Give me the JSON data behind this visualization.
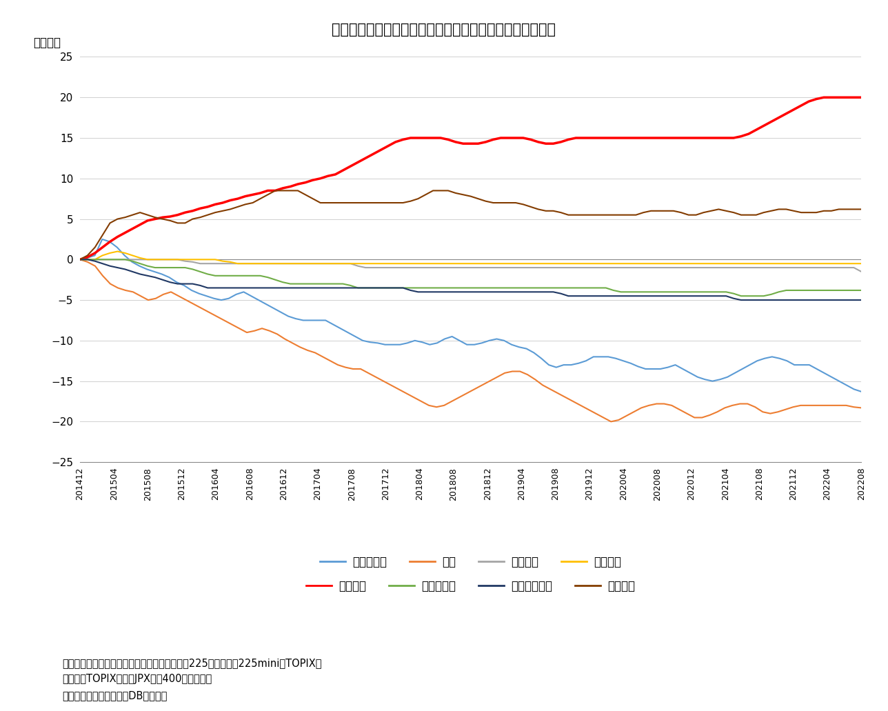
{
  "title": "図表４　事業法人の自社株買いが需給面で存在感を高める",
  "ylabel": "〈兆円〉",
  "ylim": [
    -25,
    25
  ],
  "yticks": [
    -25,
    -20,
    -15,
    -10,
    -5,
    0,
    5,
    10,
    15,
    20,
    25
  ],
  "background_color": "#ffffff",
  "note_line1": "（注）現物は東証・名証の二市場、先物は日経225先物、日経225mini、TOPIX先",
  "note_line2": "物、ミニTOPIX先物、JPX日経400先物の合計",
  "note_line3": "（資料）ニッセイ基礎研DBから作成",
  "x_labels": [
    "201412",
    "201504",
    "201508",
    "201512",
    "201604",
    "201608",
    "201612",
    "201704",
    "201708",
    "201712",
    "201804",
    "201808",
    "201812",
    "201904",
    "201908",
    "201912",
    "202004",
    "202008",
    "202012",
    "202104",
    "202108",
    "202112",
    "202204",
    "202208"
  ],
  "series": {
    "海外投資家": {
      "color": "#5B9BD5",
      "linewidth": 1.5,
      "data": [
        0.0,
        0.2,
        0.5,
        2.5,
        2.2,
        1.5,
        0.5,
        -0.3,
        -0.8,
        -1.2,
        -1.5,
        -1.8,
        -2.2,
        -2.8,
        -3.2,
        -3.8,
        -4.2,
        -4.5,
        -4.8,
        -5.0,
        -4.8,
        -4.3,
        -4.0,
        -4.5,
        -5.0,
        -5.5,
        -6.0,
        -6.5,
        -7.0,
        -7.3,
        -7.5,
        -7.5,
        -7.5,
        -7.5,
        -8.0,
        -8.5,
        -9.0,
        -9.5,
        -10.0,
        -10.2,
        -10.3,
        -10.5,
        -10.5,
        -10.5,
        -10.3,
        -10.0,
        -10.2,
        -10.5,
        -10.3,
        -9.8,
        -9.5,
        -10.0,
        -10.5,
        -10.5,
        -10.3,
        -10.0,
        -9.8,
        -10.0,
        -10.5,
        -10.8,
        -11.0,
        -11.5,
        -12.2,
        -13.0,
        -13.3,
        -13.0,
        -13.0,
        -12.8,
        -12.5,
        -12.0,
        -12.0,
        -12.0,
        -12.2,
        -12.5,
        -12.8,
        -13.2,
        -13.5,
        -13.5,
        -13.5,
        -13.3,
        -13.0,
        -13.5,
        -14.0,
        -14.5,
        -14.8,
        -15.0,
        -14.8,
        -14.5,
        -14.0,
        -13.5,
        -13.0,
        -12.5,
        -12.2,
        -12.0,
        -12.2,
        -12.5,
        -13.0,
        -13.0,
        -13.0,
        -13.5,
        -14.0,
        -14.5,
        -15.0,
        -15.5,
        -16.0,
        -16.3
      ]
    },
    "個人": {
      "color": "#ED7D31",
      "linewidth": 1.5,
      "data": [
        0.0,
        -0.3,
        -0.8,
        -2.0,
        -3.0,
        -3.5,
        -3.8,
        -4.0,
        -4.5,
        -5.0,
        -4.8,
        -4.3,
        -4.0,
        -4.5,
        -5.0,
        -5.5,
        -6.0,
        -6.5,
        -7.0,
        -7.5,
        -8.0,
        -8.5,
        -9.0,
        -8.8,
        -8.5,
        -8.8,
        -9.2,
        -9.8,
        -10.3,
        -10.8,
        -11.2,
        -11.5,
        -12.0,
        -12.5,
        -13.0,
        -13.3,
        -13.5,
        -13.5,
        -14.0,
        -14.5,
        -15.0,
        -15.5,
        -16.0,
        -16.5,
        -17.0,
        -17.5,
        -18.0,
        -18.2,
        -18.0,
        -17.5,
        -17.0,
        -16.5,
        -16.0,
        -15.5,
        -15.0,
        -14.5,
        -14.0,
        -13.8,
        -13.8,
        -14.2,
        -14.8,
        -15.5,
        -16.0,
        -16.5,
        -17.0,
        -17.5,
        -18.0,
        -18.5,
        -19.0,
        -19.5,
        -20.0,
        -19.8,
        -19.3,
        -18.8,
        -18.3,
        -18.0,
        -17.8,
        -17.8,
        -18.0,
        -18.5,
        -19.0,
        -19.5,
        -19.5,
        -19.2,
        -18.8,
        -18.3,
        -18.0,
        -17.8,
        -17.8,
        -18.2,
        -18.8,
        -19.0,
        -18.8,
        -18.5,
        -18.2,
        -18.0,
        -18.0,
        -18.0,
        -18.0,
        -18.0,
        -18.0,
        -18.0,
        -18.2,
        -18.3
      ]
    },
    "証券会社": {
      "color": "#A5A5A5",
      "linewidth": 1.5,
      "data": [
        0.0,
        0.0,
        0.0,
        0.0,
        0.0,
        0.0,
        0.0,
        0.0,
        0.0,
        0.0,
        0.0,
        0.0,
        0.0,
        0.0,
        -0.2,
        -0.3,
        -0.5,
        -0.5,
        -0.5,
        -0.5,
        -0.5,
        -0.5,
        -0.5,
        -0.5,
        -0.5,
        -0.5,
        -0.5,
        -0.5,
        -0.5,
        -0.5,
        -0.5,
        -0.5,
        -0.5,
        -0.5,
        -0.5,
        -0.5,
        -0.5,
        -0.8,
        -1.0,
        -1.0,
        -1.0,
        -1.0,
        -1.0,
        -1.0,
        -1.0,
        -1.0,
        -1.0,
        -1.0,
        -1.0,
        -1.0,
        -1.0,
        -1.0,
        -1.0,
        -1.0,
        -1.0,
        -1.0,
        -1.0,
        -1.0,
        -1.0,
        -1.0,
        -1.0,
        -1.0,
        -1.0,
        -1.0,
        -1.0,
        -1.0,
        -1.0,
        -1.0,
        -1.0,
        -1.0,
        -1.0,
        -1.0,
        -1.0,
        -1.0,
        -1.0,
        -1.0,
        -1.0,
        -1.0,
        -1.0,
        -1.0,
        -1.0,
        -1.0,
        -1.0,
        -1.0,
        -1.0,
        -1.0,
        -1.0,
        -1.0,
        -1.0,
        -1.0,
        -1.0,
        -1.0,
        -1.0,
        -1.0,
        -1.0,
        -1.0,
        -1.0,
        -1.0,
        -1.0,
        -1.0,
        -1.0,
        -1.0,
        -1.0,
        -1.0,
        -1.5
      ]
    },
    "投資信託": {
      "color": "#FFC000",
      "linewidth": 1.5,
      "data": [
        0.0,
        0.0,
        0.0,
        0.5,
        0.8,
        1.0,
        0.8,
        0.5,
        0.2,
        0.0,
        0.0,
        0.0,
        0.0,
        0.0,
        0.0,
        0.0,
        0.0,
        0.0,
        0.0,
        -0.2,
        -0.3,
        -0.5,
        -0.5,
        -0.5,
        -0.5,
        -0.5,
        -0.5,
        -0.5,
        -0.5,
        -0.5,
        -0.5,
        -0.5,
        -0.5,
        -0.5,
        -0.5,
        -0.5,
        -0.5,
        -0.5,
        -0.5,
        -0.5,
        -0.5,
        -0.5,
        -0.5,
        -0.5,
        -0.5,
        -0.5,
        -0.5,
        -0.5,
        -0.5,
        -0.5,
        -0.5,
        -0.5,
        -0.5,
        -0.5,
        -0.5,
        -0.5,
        -0.5,
        -0.5,
        -0.5,
        -0.5,
        -0.5,
        -0.5,
        -0.5,
        -0.5,
        -0.5,
        -0.5,
        -0.5,
        -0.5,
        -0.5,
        -0.5,
        -0.5,
        -0.5,
        -0.5,
        -0.5,
        -0.5,
        -0.5,
        -0.5,
        -0.5,
        -0.5,
        -0.5,
        -0.5,
        -0.5,
        -0.5,
        -0.5,
        -0.5,
        -0.5,
        -0.5,
        -0.5,
        -0.5,
        -0.5,
        -0.5,
        -0.5,
        -0.5,
        -0.5,
        -0.5,
        -0.5,
        -0.5,
        -0.5,
        -0.5,
        -0.5,
        -0.5,
        -0.5,
        -0.5,
        -0.5,
        -0.5
      ]
    },
    "事業法人": {
      "color": "#FF0000",
      "linewidth": 2.5,
      "data": [
        0.0,
        0.3,
        0.8,
        1.5,
        2.2,
        2.8,
        3.3,
        3.8,
        4.3,
        4.8,
        5.0,
        5.2,
        5.3,
        5.5,
        5.8,
        6.0,
        6.3,
        6.5,
        6.8,
        7.0,
        7.3,
        7.5,
        7.8,
        8.0,
        8.2,
        8.5,
        8.5,
        8.8,
        9.0,
        9.3,
        9.5,
        9.8,
        10.0,
        10.3,
        10.5,
        11.0,
        11.5,
        12.0,
        12.5,
        13.0,
        13.5,
        14.0,
        14.5,
        14.8,
        15.0,
        15.0,
        15.0,
        15.0,
        15.0,
        14.8,
        14.5,
        14.3,
        14.3,
        14.3,
        14.5,
        14.8,
        15.0,
        15.0,
        15.0,
        15.0,
        14.8,
        14.5,
        14.3,
        14.3,
        14.5,
        14.8,
        15.0,
        15.0,
        15.0,
        15.0,
        15.0,
        15.0,
        15.0,
        15.0,
        15.0,
        15.0,
        15.0,
        15.0,
        15.0,
        15.0,
        15.0,
        15.0,
        15.0,
        15.0,
        15.0,
        15.0,
        15.0,
        15.0,
        15.2,
        15.5,
        16.0,
        16.5,
        17.0,
        17.5,
        18.0,
        18.5,
        19.0,
        19.5,
        19.8,
        20.0,
        20.0,
        20.0,
        20.0,
        20.0,
        20.0
      ]
    },
    "生保・損保": {
      "color": "#70AD47",
      "linewidth": 1.5,
      "data": [
        0.0,
        0.0,
        0.0,
        0.0,
        0.0,
        0.0,
        0.0,
        -0.2,
        -0.5,
        -0.8,
        -1.0,
        -1.0,
        -1.0,
        -1.0,
        -1.0,
        -1.2,
        -1.5,
        -1.8,
        -2.0,
        -2.0,
        -2.0,
        -2.0,
        -2.0,
        -2.0,
        -2.0,
        -2.2,
        -2.5,
        -2.8,
        -3.0,
        -3.0,
        -3.0,
        -3.0,
        -3.0,
        -3.0,
        -3.0,
        -3.0,
        -3.2,
        -3.5,
        -3.5,
        -3.5,
        -3.5,
        -3.5,
        -3.5,
        -3.5,
        -3.5,
        -3.5,
        -3.5,
        -3.5,
        -3.5,
        -3.5,
        -3.5,
        -3.5,
        -3.5,
        -3.5,
        -3.5,
        -3.5,
        -3.5,
        -3.5,
        -3.5,
        -3.5,
        -3.5,
        -3.5,
        -3.5,
        -3.5,
        -3.5,
        -3.5,
        -3.5,
        -3.5,
        -3.5,
        -3.5,
        -3.5,
        -3.8,
        -4.0,
        -4.0,
        -4.0,
        -4.0,
        -4.0,
        -4.0,
        -4.0,
        -4.0,
        -4.0,
        -4.0,
        -4.0,
        -4.0,
        -4.0,
        -4.0,
        -4.0,
        -4.2,
        -4.5,
        -4.5,
        -4.5,
        -4.5,
        -4.3,
        -4.0,
        -3.8,
        -3.8,
        -3.8,
        -3.8,
        -3.8,
        -3.8,
        -3.8,
        -3.8,
        -3.8,
        -3.8,
        -3.8
      ]
    },
    "都銀・地銀等": {
      "color": "#203864",
      "linewidth": 1.5,
      "data": [
        0.0,
        0.0,
        -0.2,
        -0.5,
        -0.8,
        -1.0,
        -1.2,
        -1.5,
        -1.8,
        -2.0,
        -2.2,
        -2.5,
        -2.8,
        -3.0,
        -3.0,
        -3.0,
        -3.2,
        -3.5,
        -3.5,
        -3.5,
        -3.5,
        -3.5,
        -3.5,
        -3.5,
        -3.5,
        -3.5,
        -3.5,
        -3.5,
        -3.5,
        -3.5,
        -3.5,
        -3.5,
        -3.5,
        -3.5,
        -3.5,
        -3.5,
        -3.5,
        -3.5,
        -3.5,
        -3.5,
        -3.5,
        -3.5,
        -3.5,
        -3.5,
        -3.8,
        -4.0,
        -4.0,
        -4.0,
        -4.0,
        -4.0,
        -4.0,
        -4.0,
        -4.0,
        -4.0,
        -4.0,
        -4.0,
        -4.0,
        -4.0,
        -4.0,
        -4.0,
        -4.0,
        -4.0,
        -4.0,
        -4.0,
        -4.2,
        -4.5,
        -4.5,
        -4.5,
        -4.5,
        -4.5,
        -4.5,
        -4.5,
        -4.5,
        -4.5,
        -4.5,
        -4.5,
        -4.5,
        -4.5,
        -4.5,
        -4.5,
        -4.5,
        -4.5,
        -4.5,
        -4.5,
        -4.5,
        -4.5,
        -4.5,
        -4.8,
        -5.0,
        -5.0,
        -5.0,
        -5.0,
        -5.0,
        -5.0,
        -5.0,
        -5.0,
        -5.0,
        -5.0,
        -5.0,
        -5.0,
        -5.0,
        -5.0,
        -5.0,
        -5.0,
        -5.0
      ]
    },
    "信託銀行": {
      "color": "#833C00",
      "linewidth": 1.5,
      "data": [
        0.0,
        0.5,
        1.5,
        3.0,
        4.5,
        5.0,
        5.2,
        5.5,
        5.8,
        5.5,
        5.2,
        5.0,
        4.8,
        4.5,
        4.5,
        5.0,
        5.2,
        5.5,
        5.8,
        6.0,
        6.2,
        6.5,
        6.8,
        7.0,
        7.5,
        8.0,
        8.5,
        8.5,
        8.5,
        8.5,
        8.0,
        7.5,
        7.0,
        7.0,
        7.0,
        7.0,
        7.0,
        7.0,
        7.0,
        7.0,
        7.0,
        7.0,
        7.0,
        7.0,
        7.2,
        7.5,
        8.0,
        8.5,
        8.5,
        8.5,
        8.2,
        8.0,
        7.8,
        7.5,
        7.2,
        7.0,
        7.0,
        7.0,
        7.0,
        6.8,
        6.5,
        6.2,
        6.0,
        6.0,
        5.8,
        5.5,
        5.5,
        5.5,
        5.5,
        5.5,
        5.5,
        5.5,
        5.5,
        5.5,
        5.5,
        5.8,
        6.0,
        6.0,
        6.0,
        6.0,
        5.8,
        5.5,
        5.5,
        5.8,
        6.0,
        6.2,
        6.0,
        5.8,
        5.5,
        5.5,
        5.5,
        5.8,
        6.0,
        6.2,
        6.2,
        6.0,
        5.8,
        5.8,
        5.8,
        6.0,
        6.0,
        6.2,
        6.2,
        6.2,
        6.2
      ]
    }
  },
  "legend": [
    {
      "label": "海外投資家",
      "color": "#5B9BD5"
    },
    {
      "label": "個人",
      "color": "#ED7D31"
    },
    {
      "label": "証券会社",
      "color": "#A5A5A5"
    },
    {
      "label": "投資信託",
      "color": "#FFC000"
    },
    {
      "label": "事業法人",
      "color": "#FF0000"
    },
    {
      "label": "生保・損保",
      "color": "#70AD47"
    },
    {
      "label": "都銀・地銀等",
      "color": "#203864"
    },
    {
      "label": "信託銀行",
      "color": "#833C00"
    }
  ]
}
